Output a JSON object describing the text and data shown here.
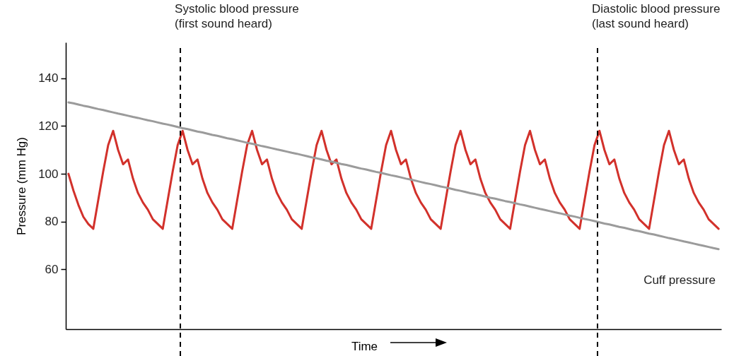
{
  "chart_data": {
    "type": "line",
    "xlabel": "Time",
    "ylabel": "Pressure (mm Hg)",
    "categories": [
      null,
      null,
      null,
      null,
      null,
      null,
      null,
      null,
      null,
      null,
      null,
      null,
      null,
      null,
      null,
      null,
      null,
      null,
      null,
      null,
      null,
      null,
      null,
      null,
      null,
      null,
      null,
      null,
      null,
      null,
      null,
      null,
      null,
      null,
      null,
      null,
      null,
      null,
      null,
      null,
      null,
      null,
      null,
      null,
      null,
      null,
      null,
      null,
      null,
      null,
      null,
      null,
      null,
      null,
      null,
      null,
      null,
      null,
      null,
      null,
      null,
      null,
      null,
      null,
      null,
      null,
      null,
      null,
      null,
      null,
      null,
      null,
      null,
      null,
      null,
      null,
      null,
      null,
      null,
      null,
      null,
      null,
      null,
      null,
      null,
      null,
      null,
      null,
      null,
      null,
      null,
      null,
      null,
      null,
      null,
      null,
      null,
      null,
      null,
      null,
      null,
      null,
      null,
      null,
      null,
      null,
      null,
      null,
      null,
      null,
      null,
      null,
      null,
      null,
      null,
      null,
      null,
      null,
      null,
      null,
      null,
      null,
      null,
      null,
      null,
      null,
      null,
      null,
      null,
      null,
      null,
      null
    ],
    "ylim": [
      35,
      155
    ],
    "yticks": [
      60,
      80,
      100,
      120,
      140
    ],
    "tick_labels": "y",
    "grid": false,
    "legend": false,
    "series": [
      {
        "color": "#d2312b",
        "values": [
          100,
          93,
          87,
          82,
          79,
          77,
          89,
          101,
          112,
          118,
          110,
          104,
          106,
          98,
          92,
          88,
          85,
          81,
          79,
          77,
          89,
          101,
          112,
          118,
          110,
          104,
          106,
          98,
          92,
          88,
          85,
          81,
          79,
          77,
          89,
          101,
          112,
          118,
          110,
          104,
          106,
          98,
          92,
          88,
          85,
          81,
          79,
          77,
          89,
          101,
          112,
          118,
          110,
          104,
          106,
          98,
          92,
          88,
          85,
          81,
          79,
          77,
          89,
          101,
          112,
          118,
          110,
          104,
          106,
          98,
          92,
          88,
          85,
          81,
          79,
          77,
          89,
          101,
          112,
          118,
          110,
          104,
          106,
          98,
          92,
          88,
          85,
          81,
          79,
          77,
          89,
          101,
          112,
          118,
          110,
          104,
          106,
          98,
          92,
          88,
          85,
          81,
          79,
          77,
          89,
          101,
          112,
          118,
          110,
          104,
          106,
          98,
          92,
          88,
          85,
          81,
          79,
          77,
          89,
          101,
          112,
          118,
          110,
          104,
          106,
          98,
          92,
          88,
          85,
          81,
          79,
          77
        ]
      },
      {
        "name": "Cuff pressure",
        "color": "#9b9b9b",
        "values": [
          129.9,
          129.5,
          129.0,
          128.5,
          128.1,
          127.6,
          127.1,
          126.7,
          126.2,
          125.7,
          125.2,
          124.8,
          124.3,
          123.8,
          123.4,
          122.9,
          122.4,
          122.0,
          121.5,
          121.0,
          120.6,
          120.1,
          119.6,
          119.1,
          118.7,
          118.2,
          117.7,
          117.3,
          116.8,
          116.3,
          115.9,
          115.4,
          114.9,
          114.5,
          114.0,
          113.5,
          113.0,
          112.6,
          112.1,
          111.6,
          111.2,
          110.7,
          110.2,
          109.8,
          109.3,
          108.8,
          108.4,
          107.9,
          107.4,
          106.9,
          106.5,
          106.0,
          105.5,
          105.1,
          104.6,
          104.1,
          103.7,
          103.2,
          102.7,
          102.2,
          101.8,
          101.3,
          100.8,
          100.4,
          99.9,
          99.4,
          99.0,
          98.5,
          98.0,
          97.6,
          97.1,
          96.6,
          96.1,
          95.7,
          95.2,
          94.7,
          94.3,
          93.8,
          93.3,
          92.9,
          92.4,
          91.9,
          91.5,
          91.0,
          90.5,
          90.0,
          89.6,
          89.1,
          88.6,
          88.2,
          87.7,
          87.2,
          86.8,
          86.3,
          85.8,
          85.3,
          84.9,
          84.4,
          83.9,
          83.5,
          83.0,
          82.5,
          82.1,
          81.6,
          81.1,
          80.7,
          80.2,
          79.7,
          79.2,
          78.8,
          78.3,
          77.8,
          77.4,
          76.9,
          76.4,
          76.0,
          75.5,
          75.0,
          74.6,
          74.1,
          73.6,
          73.1,
          72.7,
          72.2,
          71.7,
          71.3,
          70.8,
          70.3,
          69.9,
          69.4,
          68.9,
          68.5
        ]
      }
    ],
    "annotations": [
      "Systolic blood pressure\n(first sound heard)",
      "Diastolic blood pressure\n(last sound heard)"
    ]
  }
}
